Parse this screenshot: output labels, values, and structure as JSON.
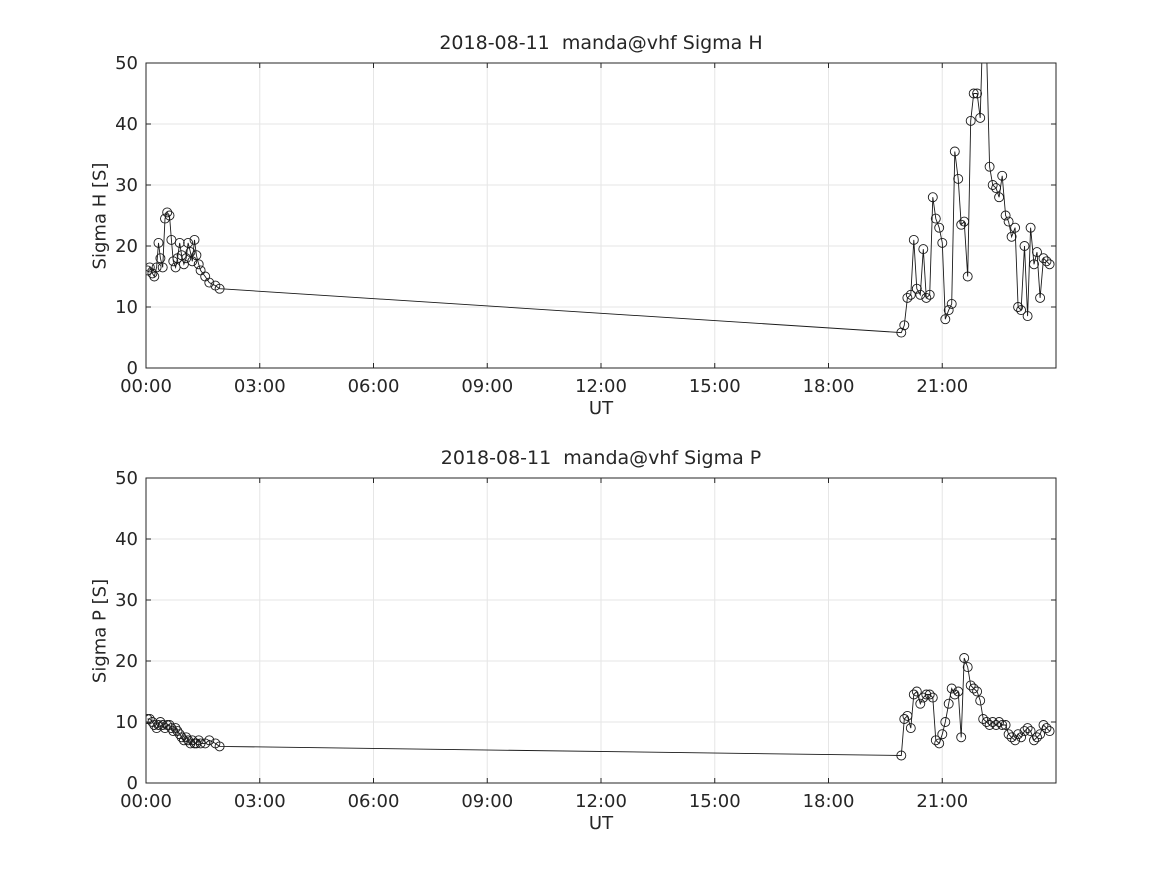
{
  "figure": {
    "background": "#ffffff",
    "text_color": "#262626",
    "grid_color": "#e6e6e6",
    "line_color": "#1a1a1a"
  },
  "chart_data": [
    {
      "type": "line",
      "title": "2018-08-11  manda@vhf Sigma H",
      "xlabel": "UT",
      "ylabel": "Sigma H [S]",
      "xlim": [
        0,
        24
      ],
      "ylim": [
        0,
        50
      ],
      "xticks": [
        0,
        3,
        6,
        9,
        12,
        15,
        18,
        21
      ],
      "xtick_labels": [
        "00:00",
        "03:00",
        "06:00",
        "09:00",
        "12:00",
        "15:00",
        "18:00",
        "21:00"
      ],
      "yticks": [
        0,
        10,
        20,
        30,
        40,
        50
      ],
      "grid": true,
      "marker": "circle-open",
      "x": [
        0.04,
        0.1,
        0.17,
        0.22,
        0.28,
        0.33,
        0.38,
        0.44,
        0.5,
        0.56,
        0.62,
        0.67,
        0.72,
        0.78,
        0.83,
        0.89,
        0.94,
        1.0,
        1.06,
        1.11,
        1.17,
        1.22,
        1.28,
        1.33,
        1.39,
        1.44,
        1.56,
        1.67,
        1.83,
        1.94,
        19.92,
        20.0,
        20.08,
        20.17,
        20.25,
        20.33,
        20.42,
        20.5,
        20.58,
        20.67,
        20.75,
        20.83,
        20.92,
        21.0,
        21.08,
        21.17,
        21.25,
        21.33,
        21.42,
        21.5,
        21.58,
        21.67,
        21.75,
        21.83,
        21.92,
        22.0,
        22.08,
        22.17,
        22.25,
        22.33,
        22.42,
        22.5,
        22.58,
        22.67,
        22.75,
        22.83,
        22.92,
        23.0,
        23.08,
        23.17,
        23.25,
        23.33,
        23.42,
        23.5,
        23.58,
        23.67,
        23.75,
        23.83
      ],
      "y": [
        16,
        16.5,
        15.5,
        15,
        16.5,
        20.5,
        18,
        16.5,
        24.5,
        25.5,
        25,
        21,
        17.5,
        16.5,
        18,
        20.5,
        18.5,
        17,
        18,
        20.5,
        19,
        17.5,
        21,
        18.5,
        17,
        16,
        15,
        14,
        13.5,
        13,
        5.8,
        7,
        11.5,
        12,
        21,
        13,
        12,
        19.5,
        11.5,
        12,
        28,
        24.5,
        23,
        20.5,
        8,
        9.5,
        10.5,
        35.5,
        31,
        23.5,
        24,
        15,
        40.5,
        45,
        45,
        41,
        58,
        52,
        33,
        30,
        29.5,
        28,
        31.5,
        25,
        24,
        21.5,
        23,
        10,
        9.5,
        20,
        8.5,
        23,
        17,
        19,
        11.5,
        18,
        17.5,
        17
      ]
    },
    {
      "type": "line",
      "title": "2018-08-11  manda@vhf Sigma P",
      "xlabel": "UT",
      "ylabel": "Sigma P [S]",
      "xlim": [
        0,
        24
      ],
      "ylim": [
        0,
        50
      ],
      "xticks": [
        0,
        3,
        6,
        9,
        12,
        15,
        18,
        21
      ],
      "xtick_labels": [
        "00:00",
        "03:00",
        "06:00",
        "09:00",
        "12:00",
        "15:00",
        "18:00",
        "21:00"
      ],
      "yticks": [
        0,
        10,
        20,
        30,
        40,
        50
      ],
      "grid": true,
      "marker": "circle-open",
      "x": [
        0.04,
        0.1,
        0.17,
        0.22,
        0.28,
        0.33,
        0.38,
        0.44,
        0.5,
        0.56,
        0.62,
        0.67,
        0.72,
        0.78,
        0.83,
        0.89,
        0.94,
        1.0,
        1.06,
        1.11,
        1.17,
        1.22,
        1.28,
        1.33,
        1.39,
        1.44,
        1.56,
        1.67,
        1.83,
        1.94,
        19.92,
        20.0,
        20.08,
        20.17,
        20.25,
        20.33,
        20.42,
        20.5,
        20.58,
        20.67,
        20.75,
        20.83,
        20.92,
        21.0,
        21.08,
        21.17,
        21.25,
        21.33,
        21.42,
        21.5,
        21.58,
        21.67,
        21.75,
        21.83,
        21.92,
        22.0,
        22.08,
        22.17,
        22.25,
        22.33,
        22.42,
        22.5,
        22.58,
        22.67,
        22.75,
        22.83,
        22.92,
        23.0,
        23.08,
        23.17,
        23.25,
        23.33,
        23.42,
        23.5,
        23.58,
        23.67,
        23.75,
        23.83
      ],
      "y": [
        10.5,
        10.5,
        10,
        9.5,
        9,
        9.5,
        10,
        9.5,
        9,
        9.5,
        9.5,
        9,
        8.5,
        9,
        8.5,
        8,
        7.5,
        7,
        7.5,
        7,
        6.5,
        7,
        6.5,
        6.5,
        7,
        6.5,
        6.5,
        7,
        6.5,
        6,
        4.5,
        10.5,
        11,
        9,
        14.5,
        15,
        13,
        14,
        14.5,
        14.5,
        14,
        7,
        6.5,
        8,
        10,
        13,
        15.5,
        14.5,
        15,
        7.5,
        20.5,
        19,
        16,
        15.5,
        15,
        13.5,
        10.5,
        10,
        9.5,
        10,
        9.5,
        10,
        9.5,
        9.5,
        8,
        7.5,
        7,
        8,
        7.5,
        8.5,
        9,
        8.5,
        7,
        7.5,
        8,
        9.5,
        9,
        8.5
      ]
    }
  ]
}
